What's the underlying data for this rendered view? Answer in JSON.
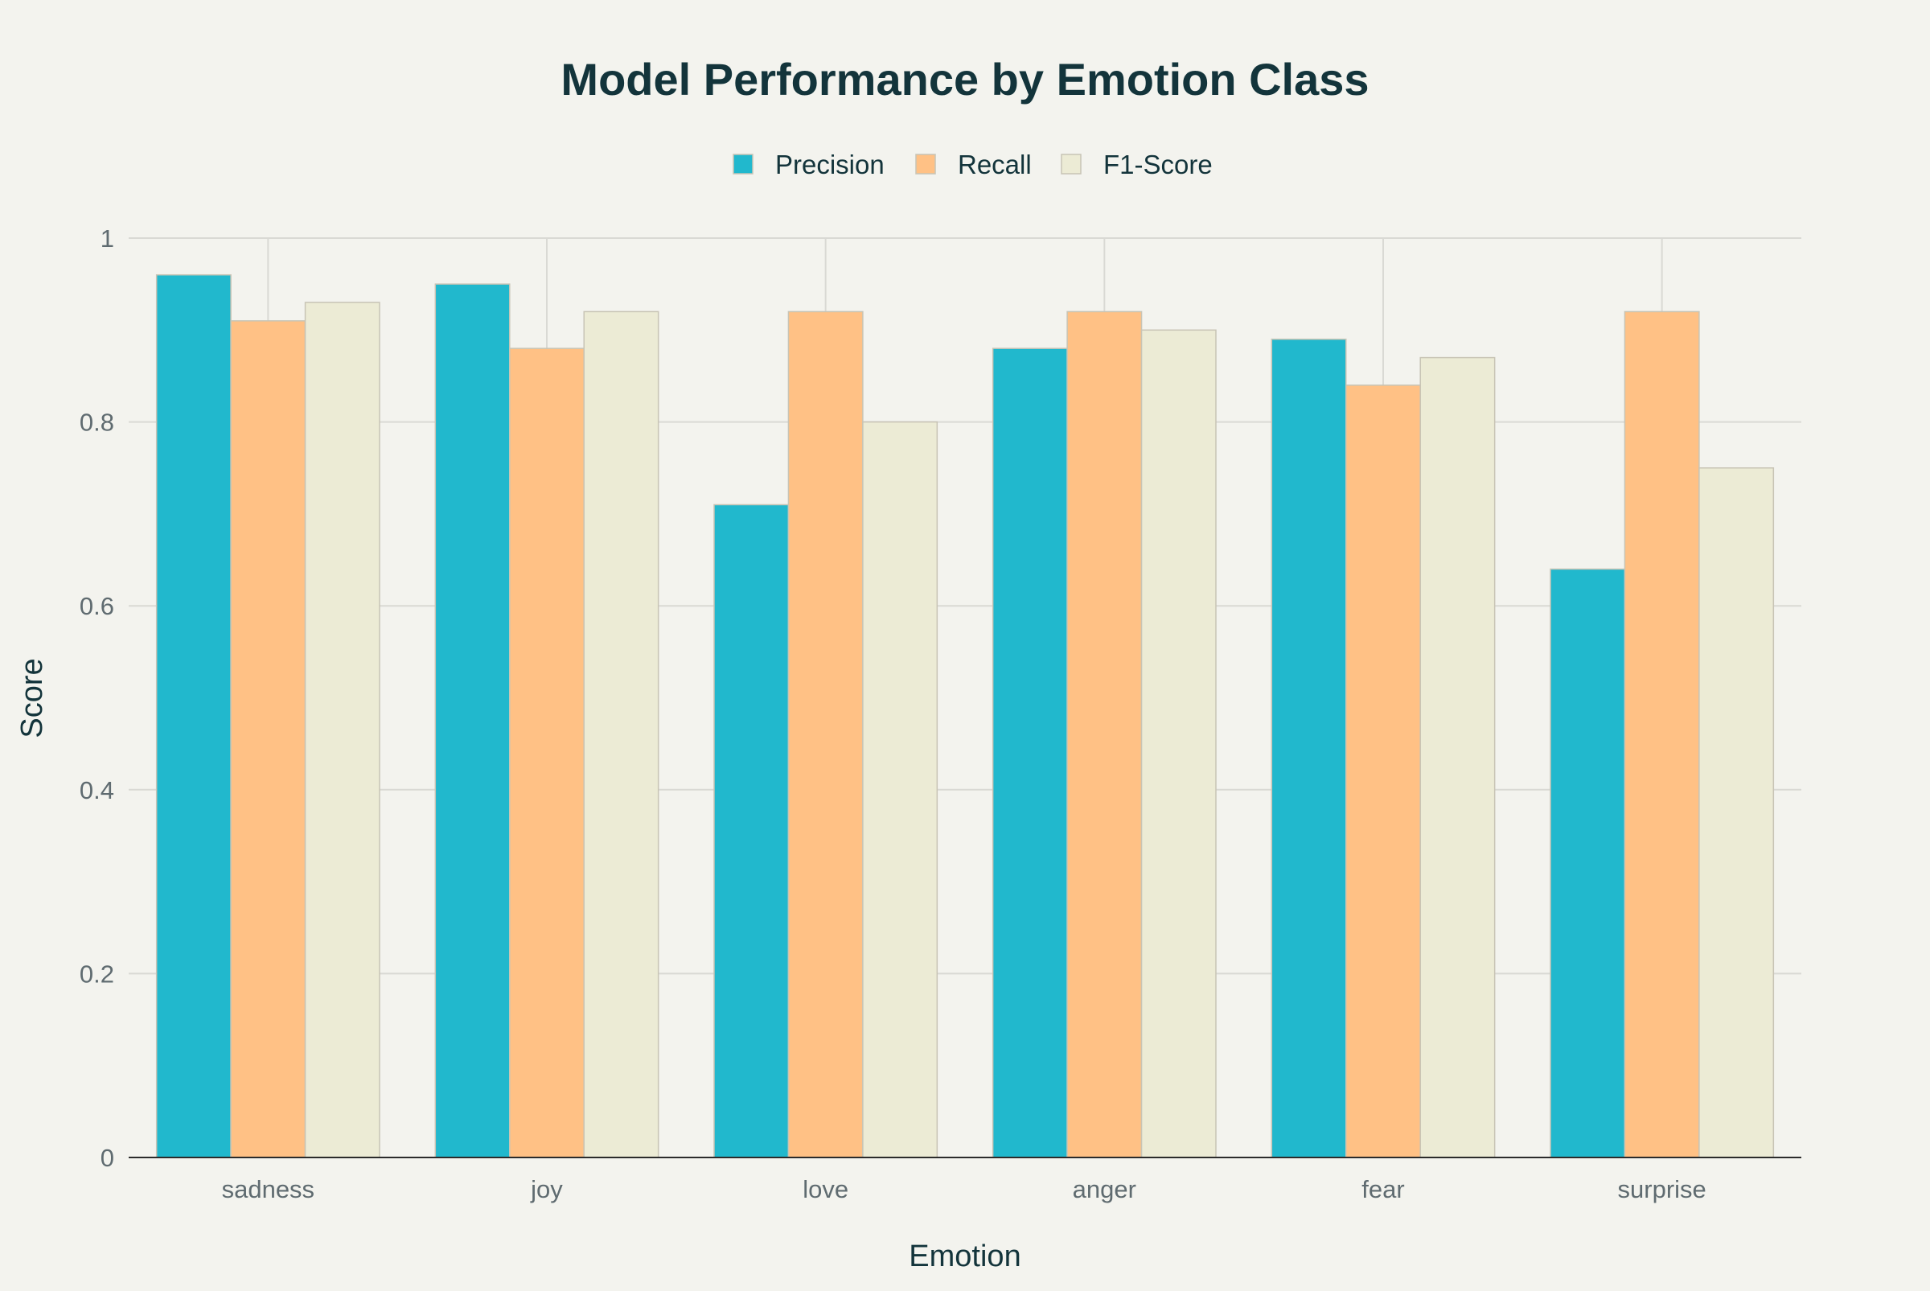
{
  "chart_data": {
    "type": "bar",
    "title": "Model Performance by Emotion Class",
    "xlabel": "Emotion",
    "ylabel": "Score",
    "categories": [
      "sadness",
      "joy",
      "love",
      "anger",
      "fear",
      "surprise"
    ],
    "series": [
      {
        "name": "Precision",
        "color": "#21B8CD",
        "values": [
          0.96,
          0.95,
          0.71,
          0.88,
          0.89,
          0.64
        ]
      },
      {
        "name": "Recall",
        "color": "#FFC185",
        "values": [
          0.91,
          0.88,
          0.92,
          0.92,
          0.84,
          0.92
        ]
      },
      {
        "name": "F1-Score",
        "color": "#ECEBD5",
        "values": [
          0.93,
          0.92,
          0.8,
          0.9,
          0.87,
          0.75
        ]
      }
    ],
    "ylim": [
      0,
      1
    ],
    "yticks": [
      0,
      0.2,
      0.4,
      0.6,
      0.8,
      1
    ],
    "ytick_labels": [
      "0",
      "0.2",
      "0.4",
      "0.6",
      "0.8",
      "1"
    ],
    "grid": true,
    "legend_position": "top-center"
  }
}
